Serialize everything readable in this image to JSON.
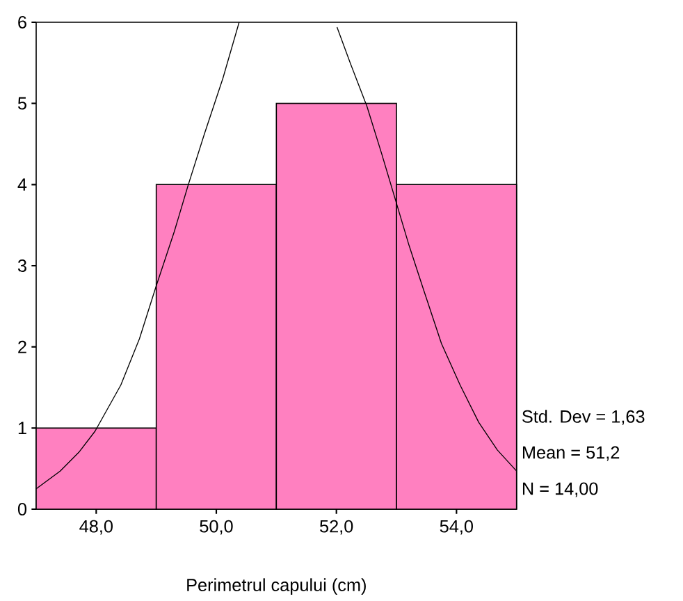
{
  "chart_data": {
    "type": "histogram",
    "xlabel": "Perimetrul capului (cm)",
    "bins": [
      47,
      49,
      51,
      53,
      55
    ],
    "values": [
      1,
      4,
      5,
      4
    ],
    "color": "#ff80c0",
    "series": [
      {
        "type": "line",
        "color": "#000000",
        "x": [
          47,
          47.4,
          47.71,
          47.98,
          48.41,
          48.72,
          48.99,
          49.3,
          49.53,
          49.8,
          50.11,
          50.38,
          51.2,
          52.01,
          52.24,
          52.51,
          52.75,
          52.98,
          53.21,
          53.44,
          53.75,
          54.06,
          54.37,
          54.68,
          55
        ],
        "values": [
          0.25,
          0.47,
          0.7,
          0.96,
          1.53,
          2.1,
          2.73,
          3.42,
          3.99,
          4.62,
          5.31,
          6.0,
          null,
          5.94,
          5.48,
          4.96,
          4.39,
          3.82,
          3.25,
          2.73,
          2.04,
          1.53,
          1.07,
          0.73,
          0.47
        ]
      }
    ],
    "xlim": [
      47,
      55
    ],
    "ylim": [
      0,
      6
    ],
    "xticks": [
      {
        "value": 48,
        "label": "48,0"
      },
      {
        "value": 50,
        "label": "50,0"
      },
      {
        "value": 52,
        "label": "52,0"
      },
      {
        "value": 54,
        "label": "54,0"
      }
    ],
    "yticks": [
      0,
      1,
      2,
      3,
      4,
      5,
      6
    ],
    "annotations": [
      "Std. Dev = 1,63",
      "Mean = 51,2",
      "N = 14,00"
    ]
  }
}
